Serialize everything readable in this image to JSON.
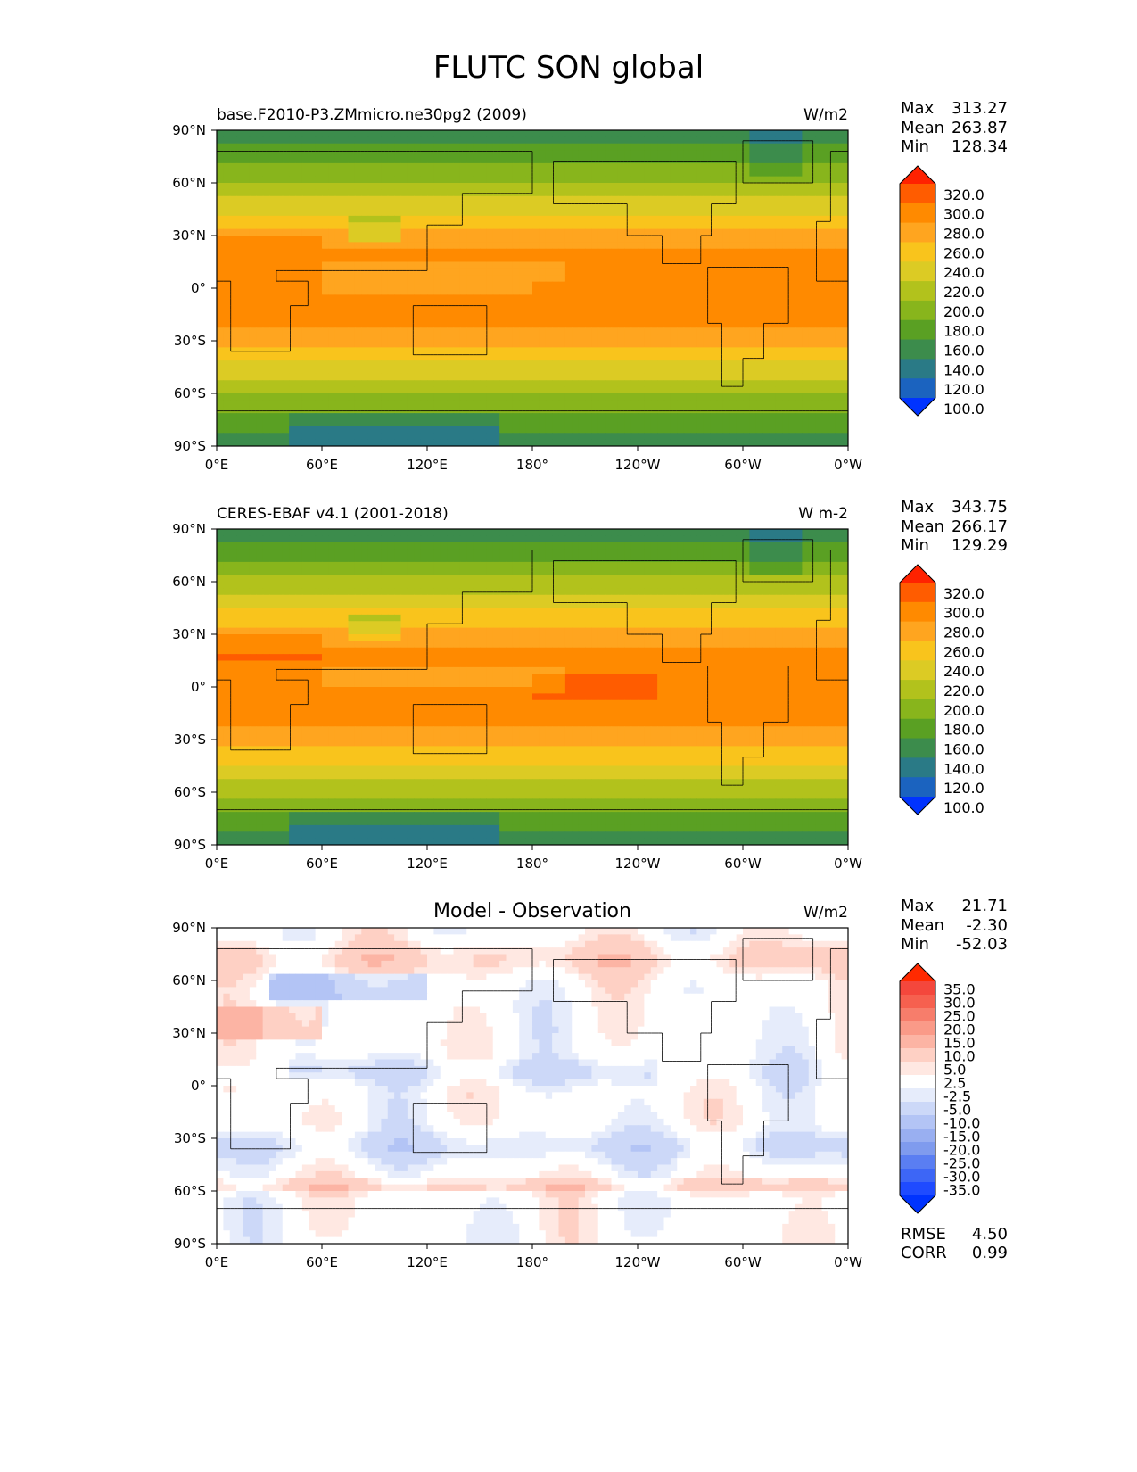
{
  "title": "FLUTC SON global",
  "x_ticks": [
    "0°E",
    "60°E",
    "120°E",
    "180°",
    "120°W",
    "60°W",
    "0°W"
  ],
  "y_ticks": [
    "90°N",
    "60°N",
    "30°N",
    "0°",
    "30°S",
    "60°S",
    "90°S"
  ],
  "stat_labels": {
    "max": "Max",
    "mean": "Mean",
    "min": "Min",
    "rmse": "RMSE",
    "corr": "CORR"
  },
  "chart_data": [
    {
      "type": "heatmap",
      "subtitle_left": "base.F2010-P3.ZMmicro.ne30pg2 (2009)",
      "subtitle_center": "",
      "units": "W/m2",
      "stats": {
        "max": "313.27",
        "mean": "263.87",
        "min": "128.34"
      },
      "colorbar": {
        "labels": [
          "320.0",
          "300.0",
          "280.0",
          "260.0",
          "240.0",
          "220.0",
          "200.0",
          "180.0",
          "160.0",
          "140.0",
          "120.0",
          "100.0"
        ],
        "colors": [
          "#ff2200",
          "#ff5c00",
          "#ff8a00",
          "#ffa51f",
          "#f9c41c",
          "#dccb24",
          "#b2c21c",
          "#88b51c",
          "#5aa023",
          "#3c8c4c",
          "#2a7a86",
          "#1b63bf",
          "#0033ff"
        ]
      },
      "field": "model"
    },
    {
      "type": "heatmap",
      "subtitle_left": "CERES-EBAF v4.1 (2001-2018)",
      "subtitle_center": "",
      "units": "W m-2",
      "stats": {
        "max": "343.75",
        "mean": "266.17",
        "min": "129.29"
      },
      "colorbar": {
        "labels": [
          "320.0",
          "300.0",
          "280.0",
          "260.0",
          "240.0",
          "220.0",
          "200.0",
          "180.0",
          "160.0",
          "140.0",
          "120.0",
          "100.0"
        ],
        "colors": [
          "#ff2200",
          "#ff5c00",
          "#ff8a00",
          "#ffa51f",
          "#f9c41c",
          "#dccb24",
          "#b2c21c",
          "#88b51c",
          "#5aa023",
          "#3c8c4c",
          "#2a7a86",
          "#1b63bf",
          "#0033ff"
        ]
      },
      "field": "obs"
    },
    {
      "type": "heatmap",
      "subtitle_left": "",
      "subtitle_center": "Model - Observation",
      "units": "W/m2",
      "stats": {
        "max": "21.71",
        "mean": "-2.30",
        "min": "-52.03",
        "rmse": "4.50",
        "corr": "0.99"
      },
      "colorbar": {
        "labels": [
          "35.0",
          "30.0",
          "25.0",
          "20.0",
          "15.0",
          "10.0",
          "5.0",
          "2.5",
          "-2.5",
          "-5.0",
          "-10.0",
          "-15.0",
          "-20.0",
          "-25.0",
          "-30.0",
          "-35.0"
        ],
        "colors": [
          "#ff2a00",
          "#f4473c",
          "#f6604f",
          "#f77d6b",
          "#fa9a88",
          "#fcb4a4",
          "#fed0c4",
          "#ffe8e2",
          "#ffffff",
          "#e6ecfb",
          "#ccd8f8",
          "#b3c4f5",
          "#99aff1",
          "#7f9bee",
          "#5a7ef2",
          "#3d66f6",
          "#1f4bff",
          "#0033ff"
        ]
      },
      "field": "diff"
    }
  ]
}
